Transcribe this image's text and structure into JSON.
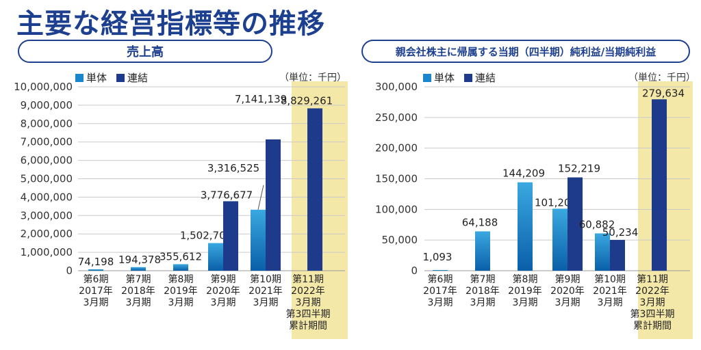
{
  "page_title": "主要な経営指標等の推移",
  "colors": {
    "single_top": "#3aa8e0",
    "single_bottom": "#0a5fa8",
    "consolidated": "#1e3a8a",
    "highlight": "#f4e8a8",
    "title_blue": "#1d3f8f"
  },
  "chart_data": [
    {
      "type": "bar",
      "title": "売上高",
      "unit": "（単位：千円）",
      "categories": [
        [
          "第6期",
          "2017年",
          "3月期"
        ],
        [
          "第7期",
          "2018年",
          "3月期"
        ],
        [
          "第8期",
          "2019年",
          "3月期"
        ],
        [
          "第9期",
          "2020年",
          "3月期"
        ],
        [
          "第10期",
          "2021年",
          "3月期"
        ],
        [
          "第11期",
          "2022年",
          "3月期",
          "第3四半期",
          "累計期間"
        ]
      ],
      "series": [
        {
          "name": "単体",
          "values": [
            74198,
            194378,
            355612,
            1502701,
            3316525,
            null
          ]
        },
        {
          "name": "連結",
          "values": [
            null,
            null,
            null,
            3776677,
            7141139,
            8829261
          ]
        }
      ],
      "data_labels": {
        "単体": [
          "74,198",
          "194,378",
          "355,612",
          "1,502,701",
          "3,316,525",
          null
        ],
        "連結": [
          null,
          null,
          null,
          "3,776,677",
          "7,141,139",
          "8,829,261"
        ]
      },
      "ylim": [
        0,
        10000000
      ],
      "yticks": [
        0,
        1000000,
        2000000,
        3000000,
        4000000,
        5000000,
        6000000,
        7000000,
        8000000,
        9000000,
        10000000
      ],
      "ytick_labels": [
        "0",
        "1,000,000",
        "2,000,000",
        "3,000,000",
        "4,000,000",
        "5,000,000",
        "6,000,000",
        "7,000,000",
        "8,000,000",
        "9,000,000",
        "10,000,000"
      ],
      "grid": true,
      "highlight_category": 5,
      "legend": "top-left"
    },
    {
      "type": "bar",
      "title": "親会社株主に帰属する当期（四半期）純利益/当期純利益",
      "unit": "（単位：千円）",
      "categories": [
        [
          "第6期",
          "2017年",
          "3月期"
        ],
        [
          "第7期",
          "2018年",
          "3月期"
        ],
        [
          "第8期",
          "2019年",
          "3月期"
        ],
        [
          "第9期",
          "2020年",
          "3月期"
        ],
        [
          "第10期",
          "2021年",
          "3月期"
        ],
        [
          "第11期",
          "2022年",
          "3月期",
          "第3四半期",
          "累計期間"
        ]
      ],
      "series": [
        {
          "name": "単体",
          "values": [
            1093,
            64188,
            144209,
            101208,
            60882,
            null
          ]
        },
        {
          "name": "連結",
          "values": [
            null,
            null,
            null,
            152219,
            50234,
            279634
          ]
        }
      ],
      "data_labels": {
        "単体": [
          "1,093",
          "64,188",
          "144,209",
          "101,208",
          "60,882",
          null
        ],
        "連結": [
          null,
          null,
          null,
          "152,219",
          "50,234",
          "279,634"
        ]
      },
      "ylim": [
        0,
        300000
      ],
      "yticks": [
        0,
        50000,
        100000,
        150000,
        200000,
        250000,
        300000
      ],
      "ytick_labels": [
        "0",
        "50,000",
        "100,000",
        "150,000",
        "200,000",
        "250,000",
        "300,000"
      ],
      "grid": true,
      "highlight_category": 5,
      "legend": "top-left"
    }
  ]
}
